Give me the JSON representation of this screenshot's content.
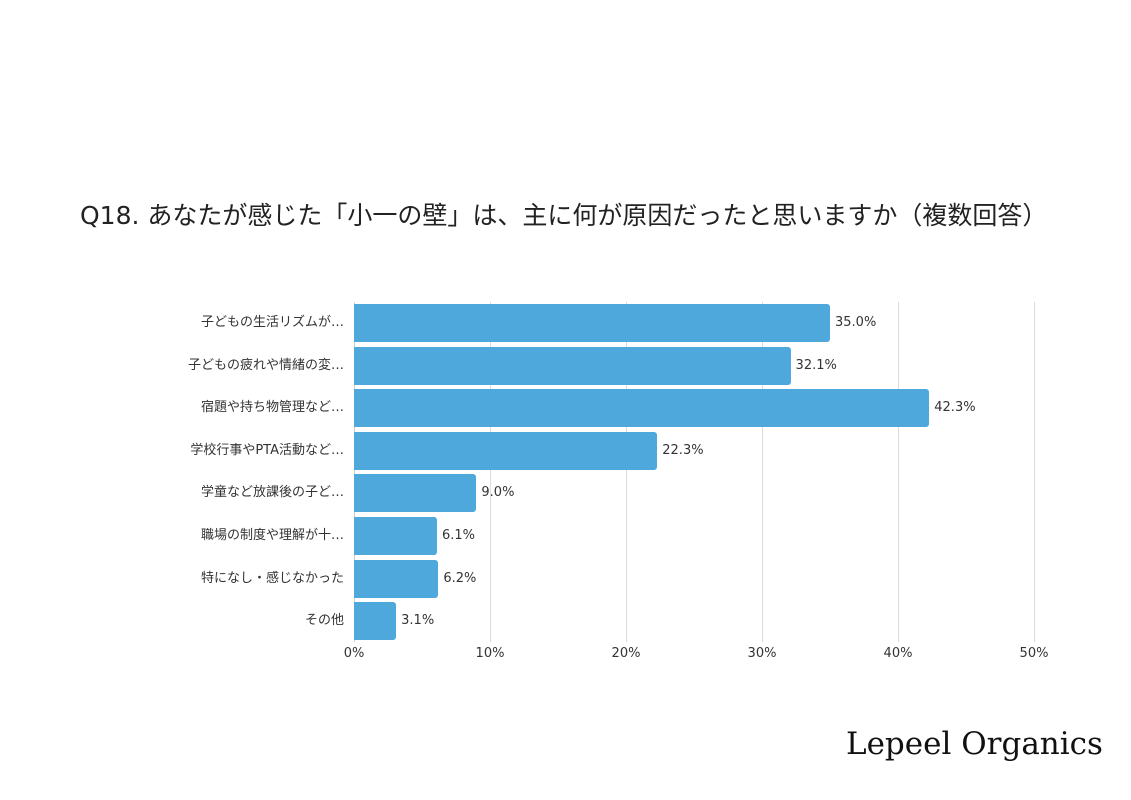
{
  "chart_data": {
    "type": "bar",
    "orientation": "horizontal",
    "title": "Q18. あなたが感じた「小一の壁」は、主に何が原因だったと思いますか（複数回答）",
    "categories": [
      "子どもの生活リズムが…",
      "子どもの疲れや情緒の変…",
      "宿題や持ち物管理など…",
      "学校行事やPTA活動など…",
      "学童など放課後の子ど…",
      "職場の制度や理解が十…",
      "特になし・感じなかった",
      "その他"
    ],
    "values": [
      35.0,
      32.1,
      42.3,
      22.3,
      9.0,
      6.1,
      6.2,
      3.1
    ],
    "value_labels": [
      "35.0%",
      "32.1%",
      "42.3%",
      "22.3%",
      "9.0%",
      "6.1%",
      "6.2%",
      "3.1%"
    ],
    "xlabel": "",
    "ylabel": "",
    "xlim": [
      0,
      50
    ],
    "x_ticks": [
      "0%",
      "10%",
      "20%",
      "30%",
      "40%",
      "50%"
    ],
    "grid": true,
    "legend": "none",
    "bar_color": "#4ea8dc"
  },
  "brand": "Lepeel Organics"
}
